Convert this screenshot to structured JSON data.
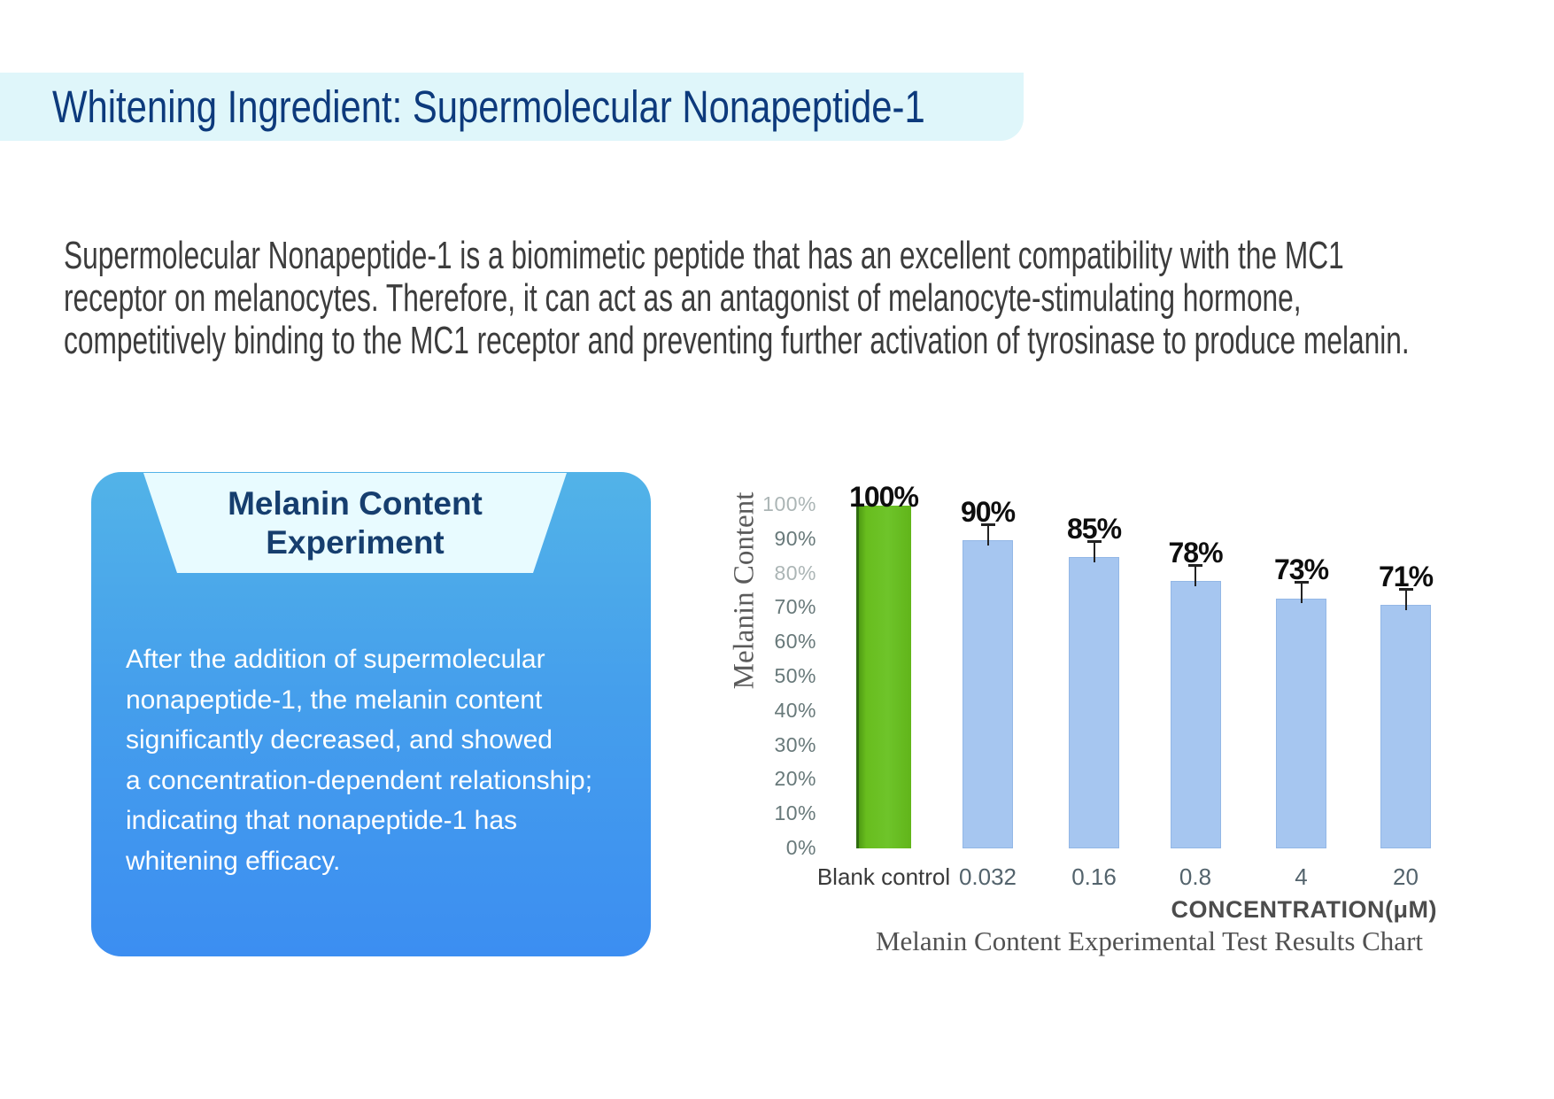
{
  "header": {
    "title": "Whitening Ingredient: Supermolecular Nonapeptide-1",
    "band_color": "#dff6fa",
    "title_color": "#0d3a7c"
  },
  "intro": {
    "lines": [
      "Supermolecular Nonapeptide-1 is a biomimetic peptide that has an excellent compatibility with the MC1",
      "receptor on melanocytes. Therefore, it can act as an antagonist of melanocyte-stimulating hormone,",
      "competitively binding to the MC1 receptor and preventing further activation of tyrosinase to produce melanin."
    ]
  },
  "card": {
    "title_line1": "Melanin Content",
    "title_line2": "Experiment",
    "body_lines": [
      "After the addition of supermolecular",
      "nonapeptide-1, the melanin content",
      "significantly decreased, and showed",
      "a concentration-dependent relationship;",
      "indicating that nonapeptide-1 has",
      "whitening efficacy."
    ],
    "gradient_top": "#52b3e8",
    "gradient_bottom": "#3c8ef1",
    "tab_color": "#e8fbff",
    "title_color": "#163e6e"
  },
  "chart_data": {
    "type": "bar",
    "title": "Melanin Content Experimental Test Results Chart",
    "ylabel": "Melanin Content",
    "xlabel": "CONCENTRATION(μM)",
    "categories": [
      "Blank control",
      "0.032",
      "0.16",
      "0.8",
      "4",
      "20"
    ],
    "values": [
      100,
      90,
      85,
      78,
      73,
      71
    ],
    "value_labels": [
      "100%",
      "90%",
      "85%",
      "78%",
      "73%",
      "71%"
    ],
    "error_bars": [
      false,
      true,
      true,
      true,
      true,
      true
    ],
    "bar_colors": [
      "#68bd1e",
      "#a6c6f0",
      "#a6c6f0",
      "#a6c6f0",
      "#a6c6f0",
      "#a6c6f0"
    ],
    "y_ticks": [
      "100%",
      "90%",
      "80%",
      "70%",
      "60%",
      "50%",
      "40%",
      "30%",
      "20%",
      "10%",
      "0%"
    ],
    "ylim": [
      0,
      100
    ],
    "grid": "off",
    "legend": "none"
  }
}
